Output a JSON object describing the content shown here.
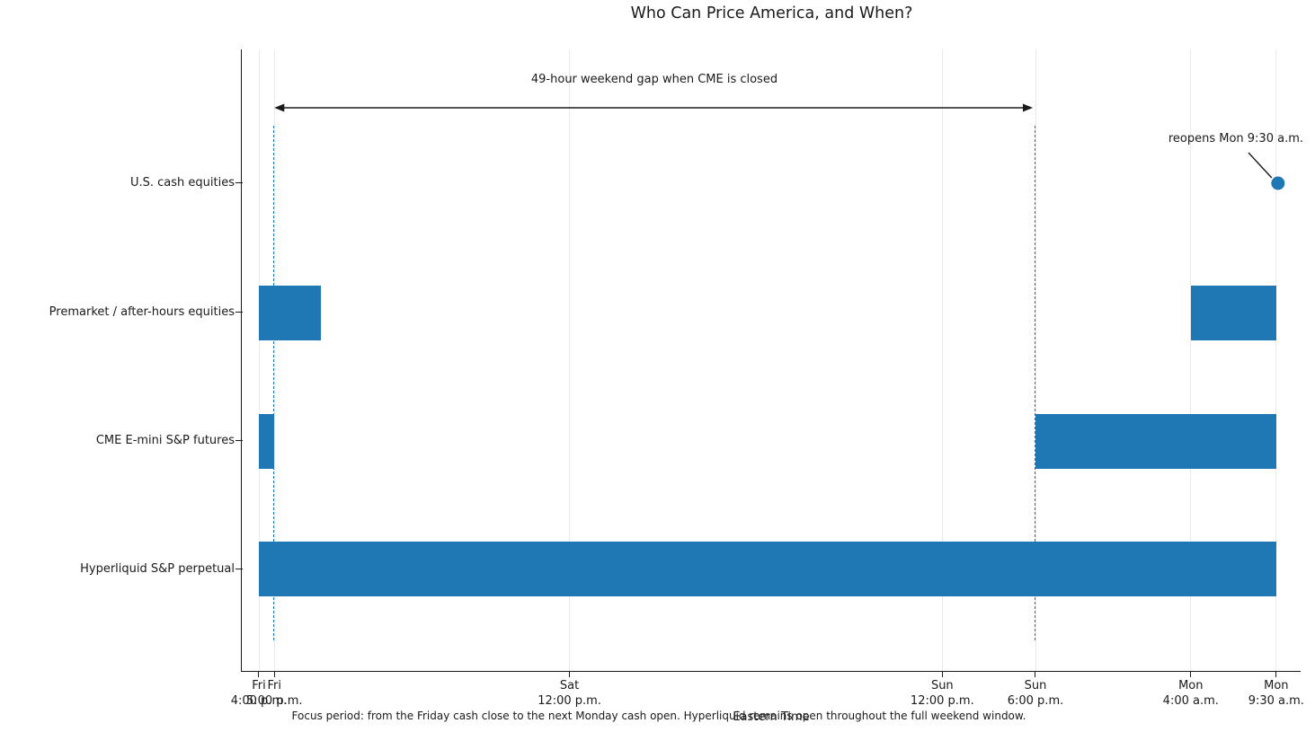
{
  "chart_data": {
    "type": "bar",
    "subtype": "horizontal-timeline-gantt",
    "title": "Who Can Price America, and When?",
    "xlabel": "Eastern Time",
    "caption": "Focus period: from the Friday cash close to the next Monday cash open. Hyperliquid remains open throughout the full weekend window.",
    "x_axis_unit": "hours after Friday 4:00 p.m. Eastern Time",
    "x_domain_hours": [
      0,
      65.5
    ],
    "legend": "none",
    "grid": "vertical-at-ticks",
    "rows": [
      {
        "label": "U.S. cash equities",
        "bars": [],
        "point_hour": 65.5,
        "point_label": "reopens Mon 9:30 a.m."
      },
      {
        "label": "Premarket / after-hours equities",
        "bars": [
          {
            "start_hour": 0,
            "end_hour": 4,
            "start": "Fri 4:00 p.m.",
            "end": "Fri 8:00 p.m."
          },
          {
            "start_hour": 60,
            "end_hour": 65.5,
            "start": "Mon 4:00 a.m.",
            "end": "Mon 9:30 a.m."
          }
        ]
      },
      {
        "label": "CME E-mini S&P futures",
        "bars": [
          {
            "start_hour": 0,
            "end_hour": 1,
            "start": "Fri 4:00 p.m.",
            "end": "Fri 5:00 p.m."
          },
          {
            "start_hour": 50,
            "end_hour": 65.5,
            "start": "Sun 6:00 p.m.",
            "end": "Mon 9:30 a.m."
          }
        ]
      },
      {
        "label": "Hyperliquid S&P perpetual",
        "bars": [
          {
            "start_hour": 0,
            "end_hour": 65.5,
            "start": "Fri 4:00 p.m.",
            "end": "Mon 9:30 a.m."
          }
        ]
      }
    ],
    "x_ticks": [
      {
        "hour": 0,
        "day": "Fri",
        "time": "4:00 p.m."
      },
      {
        "hour": 1,
        "day": "Fri",
        "time": "5:00 p.m."
      },
      {
        "hour": 20,
        "day": "Sat",
        "time": "12:00 p.m."
      },
      {
        "hour": 44,
        "day": "Sun",
        "time": "12:00 p.m."
      },
      {
        "hour": 50,
        "day": "Sun",
        "time": "6:00 p.m."
      },
      {
        "hour": 60,
        "day": "Mon",
        "time": "4:00 a.m."
      },
      {
        "hour": 65.5,
        "day": "Mon",
        "time": "9:30 a.m."
      }
    ],
    "dashed_guides_hours": [
      1,
      50
    ],
    "gap_arrow": {
      "from_hour": 1,
      "to_hour": 50,
      "label": "49-hour weekend gap when CME is closed"
    },
    "reopen_marker": {
      "row": "U.S. cash equities",
      "hour": 65.5,
      "label": "reopens Mon 9:30 a.m."
    },
    "colors": {
      "bar": "#1f77b4",
      "marker": "#1f77b4",
      "dashed_guide": "#1f77b4",
      "grid": "#eaeaea",
      "axis": "#1a1a1a",
      "text": "#1a1a1a"
    }
  }
}
